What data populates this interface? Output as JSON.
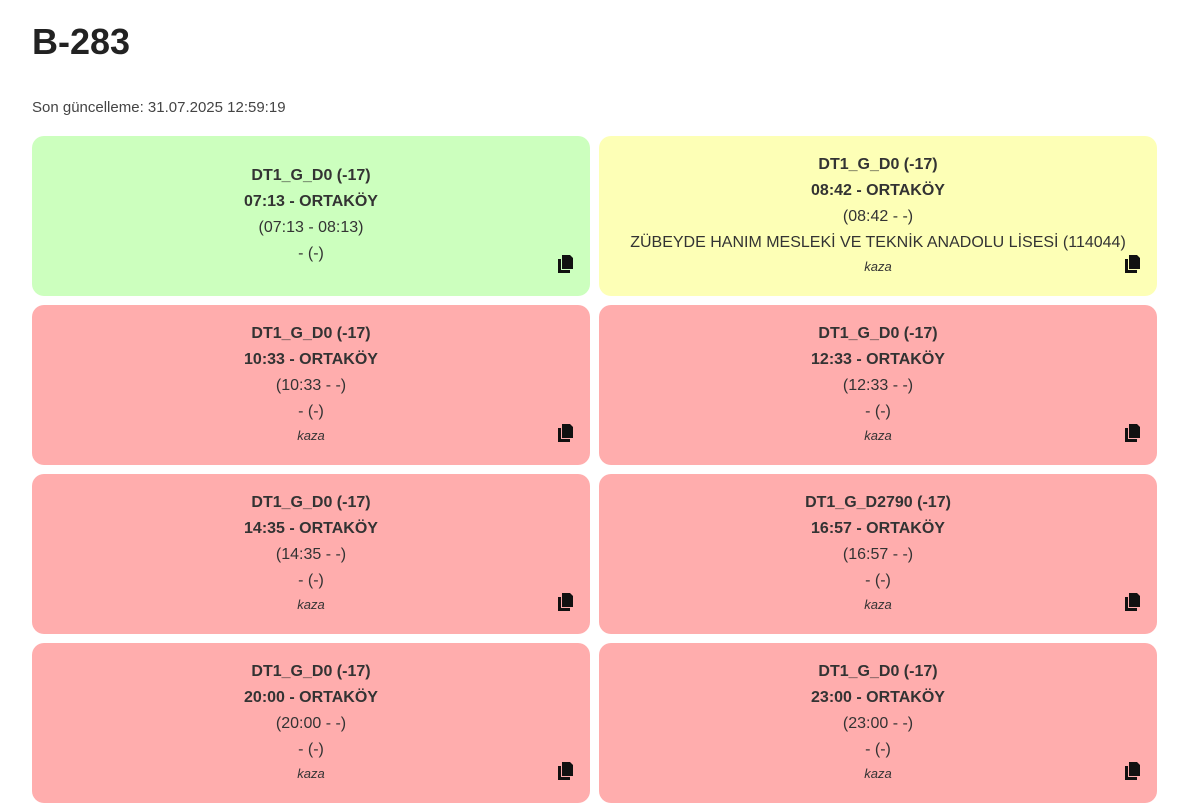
{
  "header": {
    "title": "B-283",
    "last_update": "Son güncelleme: 31.07.2025 12:59:19"
  },
  "cards": [
    {
      "status_color": "#ccffbe",
      "code": "DT1_G_D0 (-17)",
      "departure": "07:13 - ORTAKÖY",
      "time_range": "(07:13 - 08:13)",
      "info": "- (-)",
      "note": "",
      "copy_icon": "copy-icon"
    },
    {
      "status_color": "#fdffb6",
      "code": "DT1_G_D0 (-17)",
      "departure": "08:42 - ORTAKÖY",
      "time_range": "(08:42 - -)",
      "info": "ZÜBEYDE HANIM MESLEKİ VE TEKNİK ANADOLU LİSESİ (114044)",
      "note": "kaza",
      "copy_icon": "copy-icon"
    },
    {
      "status_color": "#ffadad",
      "code": "DT1_G_D0 (-17)",
      "departure": "10:33 - ORTAKÖY",
      "time_range": "(10:33 - -)",
      "info": "- (-)",
      "note": "kaza",
      "copy_icon": "copy-icon"
    },
    {
      "status_color": "#ffadad",
      "code": "DT1_G_D0 (-17)",
      "departure": "12:33 - ORTAKÖY",
      "time_range": "(12:33 - -)",
      "info": "- (-)",
      "note": "kaza",
      "copy_icon": "copy-icon"
    },
    {
      "status_color": "#ffadad",
      "code": "DT1_G_D0 (-17)",
      "departure": "14:35 - ORTAKÖY",
      "time_range": "(14:35 - -)",
      "info": "- (-)",
      "note": "kaza",
      "copy_icon": "copy-icon"
    },
    {
      "status_color": "#ffadad",
      "code": "DT1_G_D2790 (-17)",
      "departure": "16:57 - ORTAKÖY",
      "time_range": "(16:57 - -)",
      "info": "- (-)",
      "note": "kaza",
      "copy_icon": "copy-icon"
    },
    {
      "status_color": "#ffadad",
      "code": "DT1_G_D0 (-17)",
      "departure": "20:00 - ORTAKÖY",
      "time_range": "(20:00 - -)",
      "info": "- (-)",
      "note": "kaza",
      "copy_icon": "copy-icon"
    },
    {
      "status_color": "#ffadad",
      "code": "DT1_G_D0 (-17)",
      "departure": "23:00 - ORTAKÖY",
      "time_range": "(23:00 - -)",
      "info": "- (-)",
      "note": "kaza",
      "copy_icon": "copy-icon"
    }
  ]
}
